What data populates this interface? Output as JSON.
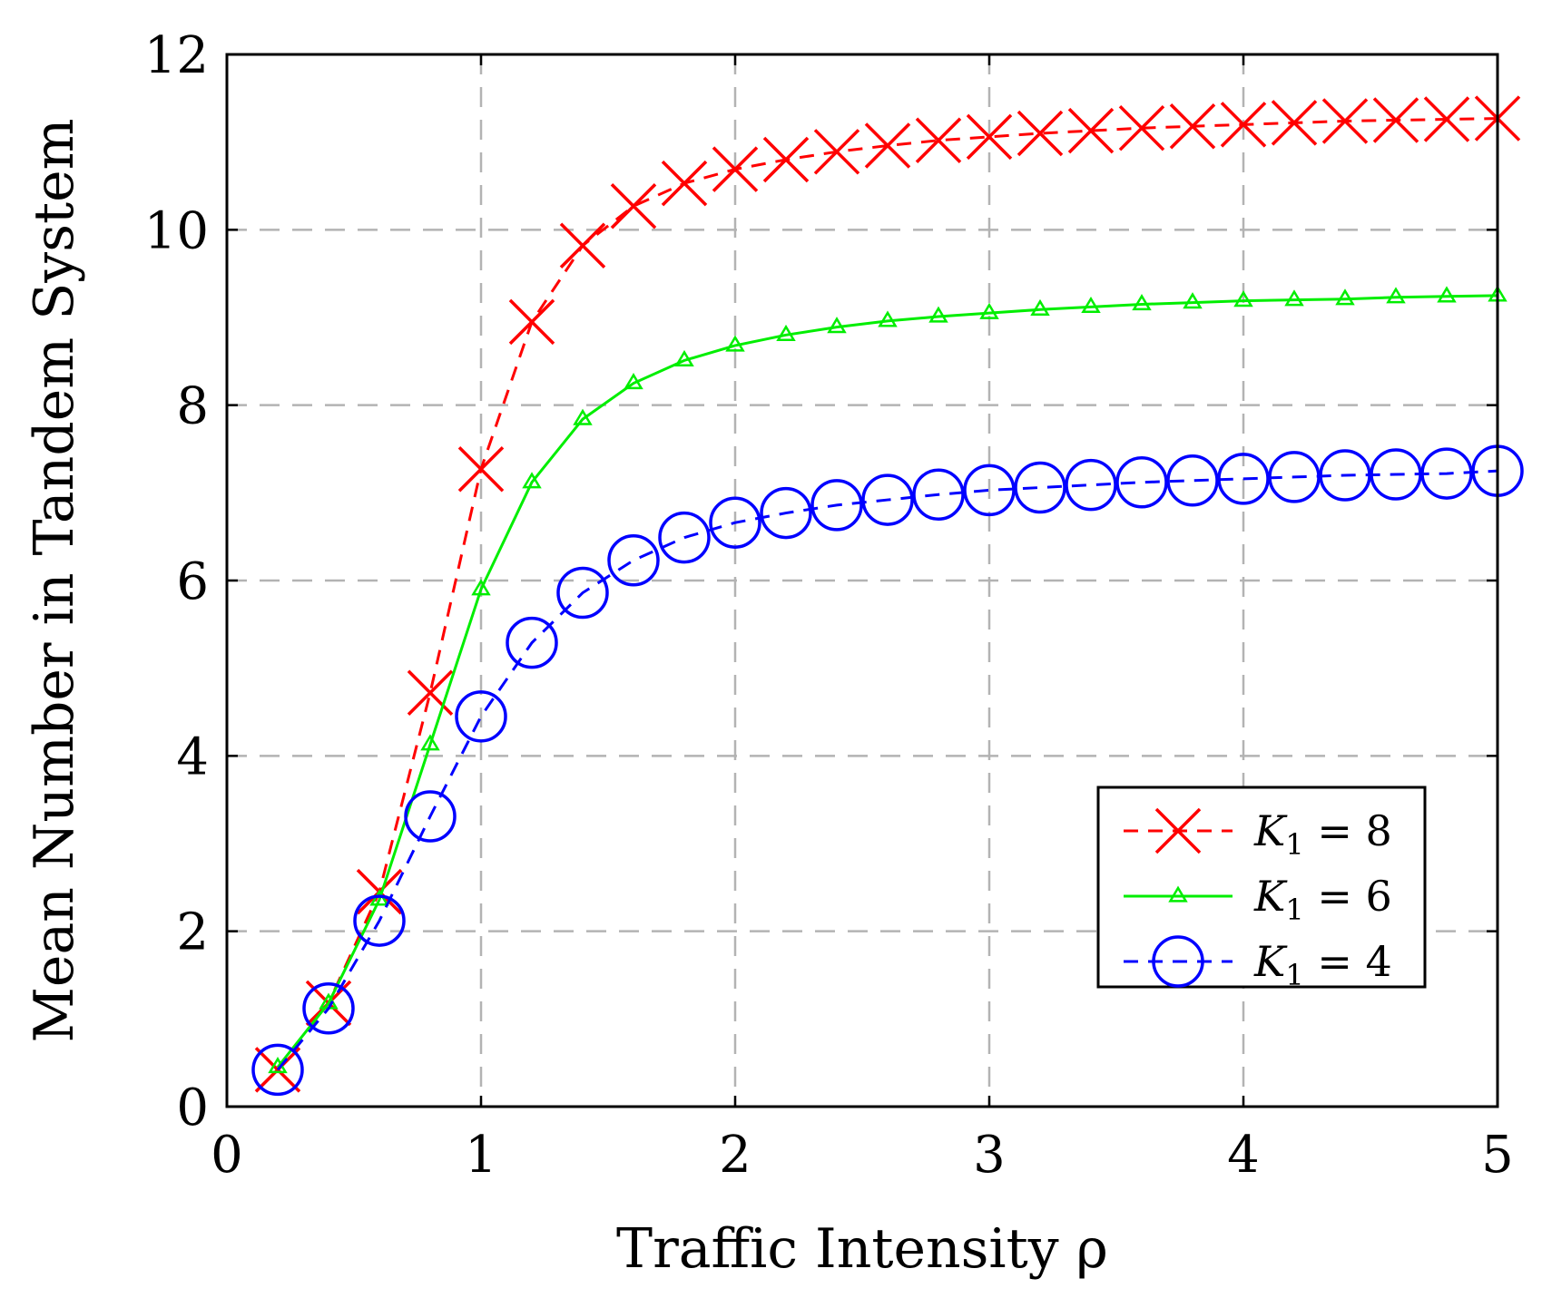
{
  "chart_data": {
    "type": "line",
    "title": "",
    "xlabel": "Traffic Intensity ρ",
    "ylabel": "Mean Number in Tandem System",
    "xlim": [
      0,
      5
    ],
    "ylim": [
      0,
      12
    ],
    "xticks": [
      0,
      1,
      2,
      3,
      4,
      5
    ],
    "yticks": [
      0,
      2,
      4,
      6,
      8,
      10,
      12
    ],
    "xtick_labels": [
      "0",
      "1",
      "2",
      "3",
      "4",
      "5"
    ],
    "ytick_labels": [
      "0",
      "2",
      "4",
      "6",
      "8",
      "10",
      "12"
    ],
    "grid": true,
    "legend_position": "lower-right",
    "x": [
      0.2,
      0.4,
      0.6,
      0.8,
      1.0,
      1.2,
      1.4,
      1.6,
      1.8,
      2.0,
      2.2,
      2.4,
      2.6,
      2.8,
      3.0,
      3.2,
      3.4,
      3.6,
      3.8,
      4.0,
      4.2,
      4.4,
      4.6,
      4.8,
      5.0
    ],
    "series": [
      {
        "name": "K1 = 8",
        "legend": {
          "main": "K",
          "sub": "1",
          "rest": " = 8"
        },
        "color": "#ff0000",
        "line_style": "dashed",
        "marker": "x",
        "values": [
          0.42,
          1.18,
          2.45,
          4.72,
          7.27,
          8.95,
          9.82,
          10.27,
          10.53,
          10.69,
          10.8,
          10.89,
          10.96,
          11.02,
          11.06,
          11.1,
          11.13,
          11.16,
          11.18,
          11.2,
          11.22,
          11.24,
          11.25,
          11.26,
          11.27
        ]
      },
      {
        "name": "K1 = 6",
        "legend": {
          "main": "K",
          "sub": "1",
          "rest": " = 6"
        },
        "color": "#00ee00",
        "line_style": "solid",
        "marker": "triangle",
        "values": [
          0.45,
          1.18,
          2.36,
          4.13,
          5.9,
          7.12,
          7.84,
          8.25,
          8.51,
          8.68,
          8.8,
          8.89,
          8.96,
          9.01,
          9.05,
          9.09,
          9.12,
          9.15,
          9.17,
          9.19,
          9.2,
          9.21,
          9.23,
          9.24,
          9.25
        ]
      },
      {
        "name": "K1 = 4",
        "legend": {
          "main": "K",
          "sub": "1",
          "rest": " = 4"
        },
        "color": "#0000ff",
        "line_style": "dashed",
        "marker": "circle",
        "values": [
          0.42,
          1.12,
          2.12,
          3.31,
          4.45,
          5.29,
          5.86,
          6.23,
          6.49,
          6.66,
          6.77,
          6.86,
          6.92,
          6.98,
          7.03,
          7.06,
          7.09,
          7.12,
          7.14,
          7.16,
          7.18,
          7.2,
          7.21,
          7.22,
          7.25
        ]
      }
    ]
  }
}
